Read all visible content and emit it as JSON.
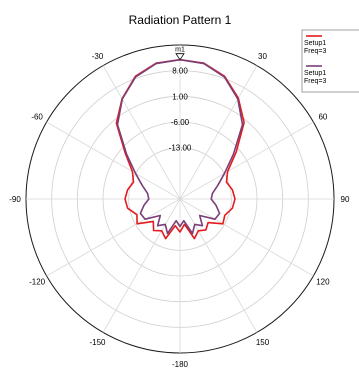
{
  "chart_data": {
    "type": "polar-line",
    "title": "Radiation Pattern 1",
    "angle_ticks": [
      0,
      30,
      60,
      90,
      120,
      150,
      180,
      -150,
      -120,
      -90,
      -60,
      -30
    ],
    "angle_tick_labels": [
      "0",
      "30",
      "60",
      "90",
      "120",
      "150",
      "-180",
      "-150",
      "-120",
      "-90",
      "-60",
      "-30"
    ],
    "radial_ticks": [
      8.0,
      1.0,
      -6.0,
      -13.0
    ],
    "radial_tick_labels": [
      "8.00",
      "1.00",
      "-6.00",
      "-13.00"
    ],
    "r_range": [
      -27,
      15
    ],
    "grid": true,
    "marker": {
      "label": "m1",
      "angle_deg": 0
    },
    "legend": {
      "position": "top-right",
      "entries": [
        {
          "color": "#e41a1c",
          "lines": [
            "Setup1",
            "Freq=3"
          ]
        },
        {
          "color": "#7b3f78",
          "lines": [
            "Setup1",
            "Freq=3"
          ]
        }
      ]
    },
    "series": [
      {
        "color": "#e41a1c",
        "angles": [
          0,
          10,
          20,
          30,
          40,
          50,
          60,
          70,
          80,
          90,
          100,
          110,
          120,
          130,
          140,
          150,
          160,
          170,
          180,
          -170,
          -160,
          -150,
          -140,
          -130,
          -120,
          -110,
          -100,
          -90,
          -80,
          -70,
          -60,
          -50,
          -40,
          -30,
          -20,
          -10
        ],
        "values": [
          11,
          10.6,
          8.6,
          4.8,
          0.2,
          -7,
          -12,
          -13.5,
          -12.5,
          -12,
          -12.5,
          -14,
          -13.5,
          -17,
          -16,
          -17,
          -15.5,
          -20,
          -18,
          -19.6,
          -15.5,
          -17,
          -15.8,
          -17.5,
          -13.5,
          -14.5,
          -12.5,
          -12,
          -12.5,
          -13.5,
          -12,
          -7.5,
          0,
          4.6,
          8.6,
          10.6
        ]
      },
      {
        "color": "#7b3f78",
        "angles": [
          0,
          10,
          20,
          30,
          40,
          50,
          60,
          70,
          80,
          90,
          100,
          110,
          120,
          130,
          140,
          150,
          160,
          170,
          180,
          -170,
          -160,
          -150,
          -140,
          -130,
          -120,
          -110,
          -100,
          -90,
          -80,
          -70,
          -60,
          -50,
          -40,
          -30,
          -20,
          -10
        ],
        "values": [
          11,
          10.5,
          8.4,
          4.5,
          -0.5,
          -8,
          -13,
          -16,
          -18,
          -18.5,
          -17,
          -15.5,
          -16,
          -20,
          -17.5,
          -19,
          -17,
          -21,
          -19.5,
          -21,
          -17,
          -19,
          -17.5,
          -20,
          -16,
          -15.5,
          -17,
          -18.5,
          -18,
          -16,
          -13,
          -8,
          -0.5,
          4.5,
          8.4,
          10.5
        ]
      }
    ]
  }
}
